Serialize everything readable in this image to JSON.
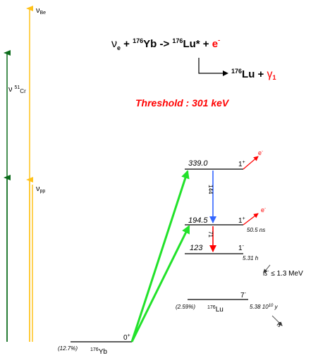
{
  "reaction": {
    "nu": "ν",
    "e_sub": "e",
    "plus1": " + ",
    "yb_sup": "176",
    "yb": "Yb",
    "arrow": " -> ",
    "lu_sup": "176",
    "lu_star": "Lu*",
    "plus2": " + ",
    "electron": "e",
    "electron_sup": "-"
  },
  "decay": {
    "lu_sup": "176",
    "lu": "Lu",
    "plus": " + ",
    "gamma": "γ",
    "gamma_sub": "1"
  },
  "threshold": "Threshold : 301 keV",
  "neutrino_sources": {
    "be": {
      "nu": "ν",
      "sub": "Be"
    },
    "cr": {
      "nu": "ν",
      "sup": "51",
      "sub": "Cr"
    },
    "pp": {
      "nu": "ν",
      "sub": "pp"
    }
  },
  "levels": {
    "l339": {
      "energy": "339.0",
      "spin": "1",
      "parity": "+",
      "emission": "e",
      "emission_sup": "-"
    },
    "l194": {
      "energy": "194.5",
      "spin": "1",
      "parity": "+",
      "emission": "e",
      "emission_sup": "-",
      "halflife": "50.5 ns"
    },
    "l123": {
      "energy": "123",
      "spin": "1",
      "parity": "-",
      "halflife": "5.31 h"
    },
    "lu_ground": {
      "abundance": "(2.59%)",
      "nucleus_sup": "176",
      "nucleus": "Lu",
      "spin": "7",
      "parity": "-",
      "halflife_base": "5.38 10",
      "halflife_exp": "10",
      "halflife_unit": " y"
    },
    "yb_ground": {
      "abundance": "(12.7%)",
      "nucleus_sup": "176",
      "nucleus": "Yb",
      "spin": "0",
      "parity": "+"
    }
  },
  "transitions": {
    "t144": "144",
    "t71": "71"
  },
  "beta": {
    "symbol": "ß",
    "sup": "-",
    "limit": " ≤ 1.3 MeV"
  },
  "beta2": {
    "symbol": "ß",
    "sup": "-"
  },
  "colors": {
    "green_dark": "#0b6b1a",
    "yellow": "#ffc21a",
    "bright_green": "#22e22a",
    "blue": "#3366ff",
    "red": "#ff0000"
  }
}
